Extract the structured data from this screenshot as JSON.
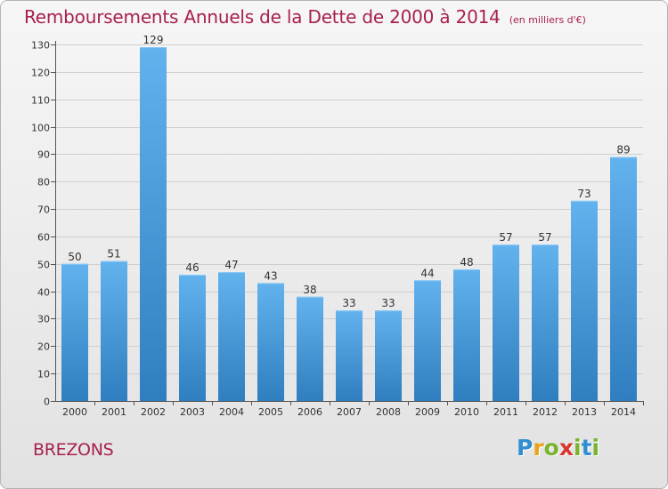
{
  "chart_data": {
    "type": "bar",
    "title": "Remboursements Annuels de la Dette de 2000 à 2014",
    "subtitle": "(en milliers d'€)",
    "categories": [
      "2000",
      "2001",
      "2002",
      "2003",
      "2004",
      "2005",
      "2006",
      "2007",
      "2008",
      "2009",
      "2010",
      "2011",
      "2012",
      "2013",
      "2014"
    ],
    "values": [
      50,
      51,
      129,
      46,
      47,
      43,
      38,
      33,
      33,
      44,
      48,
      57,
      57,
      73,
      89
    ],
    "ylim": [
      0,
      130
    ],
    "yticks": [
      0,
      10,
      20,
      30,
      40,
      50,
      60,
      70,
      80,
      90,
      100,
      110,
      120,
      130
    ],
    "xlabel": "",
    "ylabel": "",
    "grid": true,
    "colors": {
      "bar_light": "#62b2ee",
      "bar_dark": "#2f7fc0",
      "grid": "#cfcfcf",
      "axis": "#555555"
    }
  },
  "commune": "BREZONS",
  "brand": {
    "letters": [
      "P",
      "r",
      "o",
      "x",
      "i",
      "t",
      "i"
    ]
  }
}
